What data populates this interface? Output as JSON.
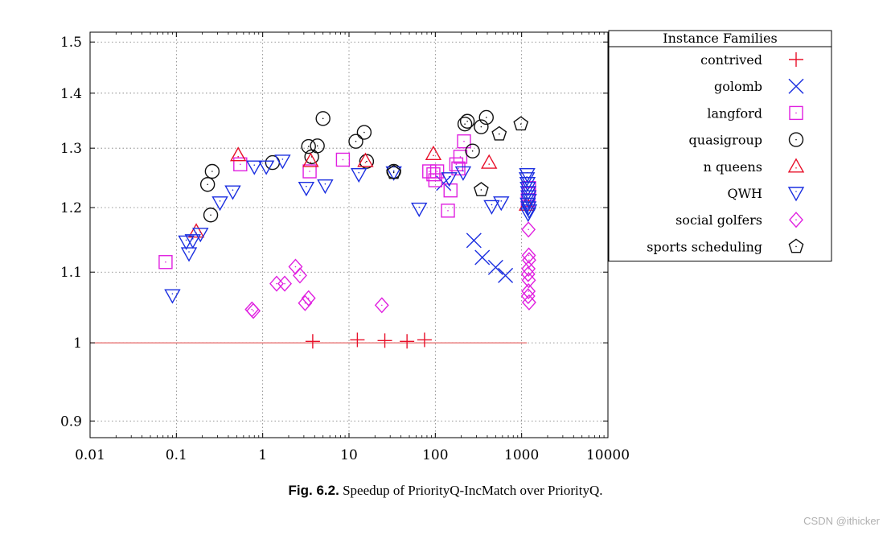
{
  "chart_data": {
    "type": "scatter",
    "title": "",
    "xlabel": "",
    "ylabel": "",
    "xscale": "log",
    "yscale": "log",
    "xlim": [
      0.01,
      10000
    ],
    "ylim": [
      0.88,
      1.52
    ],
    "x_ticks": [
      0.01,
      0.1,
      1,
      10,
      100,
      1000,
      10000
    ],
    "x_tick_labels": [
      "0.01",
      "0.1",
      "1",
      "10",
      "100",
      "1000",
      "10000"
    ],
    "y_ticks": [
      0.9,
      1,
      1.1,
      1.2,
      1.3,
      1.4,
      1.5
    ],
    "y_tick_labels": [
      "0.9",
      "1",
      "1.1",
      "1.2",
      "1.3",
      "1.4",
      "1.5"
    ],
    "grid": true,
    "reference_line": {
      "y": 1.0,
      "x_from": 0.01,
      "x_to": 1150,
      "color": "#e04040"
    },
    "legend_title": "Instance Families",
    "legend_position": "right",
    "series": [
      {
        "name": "contrived",
        "marker": "plus",
        "color": "#e8102a",
        "points": [
          [
            3.8,
            1.002
          ],
          [
            12.5,
            1.004
          ],
          [
            26,
            1.003
          ],
          [
            47,
            1.002
          ],
          [
            75,
            1.004
          ]
        ]
      },
      {
        "name": "golomb",
        "marker": "x",
        "color": "#1a2ee0",
        "points": [
          [
            125,
            1.24
          ],
          [
            280,
            1.148
          ],
          [
            350,
            1.122
          ],
          [
            500,
            1.107
          ],
          [
            650,
            1.095
          ]
        ]
      },
      {
        "name": "langford",
        "marker": "square",
        "color": "#e020e0",
        "points": [
          [
            0.075,
            1.115
          ],
          [
            0.55,
            1.272
          ],
          [
            3.5,
            1.26
          ],
          [
            8.5,
            1.28
          ],
          [
            85,
            1.26
          ],
          [
            95,
            1.255
          ],
          [
            100,
            1.245
          ],
          [
            105,
            1.26
          ],
          [
            140,
            1.195
          ],
          [
            150,
            1.228
          ],
          [
            175,
            1.272
          ],
          [
            185,
            1.265
          ],
          [
            195,
            1.285
          ],
          [
            215,
            1.312
          ],
          [
            1180,
            1.212
          ],
          [
            1220,
            1.232
          ],
          [
            1200,
            1.222
          ]
        ]
      },
      {
        "name": "quasigroup",
        "marker": "circle",
        "color": "#111111",
        "points": [
          [
            0.23,
            1.238
          ],
          [
            0.26,
            1.26
          ],
          [
            0.25,
            1.188
          ],
          [
            1.3,
            1.275
          ],
          [
            3.4,
            1.303
          ],
          [
            3.7,
            1.285
          ],
          [
            4.3,
            1.304
          ],
          [
            5.0,
            1.353
          ],
          [
            12,
            1.312
          ],
          [
            15,
            1.328
          ],
          [
            16,
            1.277
          ],
          [
            33,
            1.26
          ],
          [
            220,
            1.343
          ],
          [
            235,
            1.348
          ],
          [
            270,
            1.295
          ],
          [
            340,
            1.338
          ],
          [
            390,
            1.355
          ]
        ]
      },
      {
        "name": "n queens",
        "marker": "triangle-up",
        "color": "#e8102a",
        "points": [
          [
            0.17,
            1.162
          ],
          [
            0.52,
            1.288
          ],
          [
            3.6,
            1.278
          ],
          [
            15.5,
            1.278
          ],
          [
            95,
            1.29
          ],
          [
            420,
            1.275
          ],
          [
            1150,
            1.205
          ]
        ]
      },
      {
        "name": "QWH",
        "marker": "triangle-down",
        "color": "#1a2ee0",
        "points": [
          [
            0.09,
            1.066
          ],
          [
            0.13,
            1.146
          ],
          [
            0.14,
            1.128
          ],
          [
            0.155,
            1.148
          ],
          [
            0.19,
            1.158
          ],
          [
            0.32,
            1.208
          ],
          [
            0.45,
            1.226
          ],
          [
            0.8,
            1.268
          ],
          [
            1.1,
            1.268
          ],
          [
            1.7,
            1.278
          ],
          [
            3.2,
            1.232
          ],
          [
            5.3,
            1.236
          ],
          [
            13,
            1.255
          ],
          [
            33,
            1.258
          ],
          [
            65,
            1.198
          ],
          [
            145,
            1.248
          ],
          [
            210,
            1.258
          ],
          [
            450,
            1.202
          ],
          [
            580,
            1.208
          ],
          [
            1150,
            1.248
          ],
          [
            1160,
            1.255
          ],
          [
            1170,
            1.24
          ],
          [
            1180,
            1.232
          ],
          [
            1190,
            1.225
          ],
          [
            1200,
            1.218
          ],
          [
            1210,
            1.212
          ],
          [
            1180,
            1.206
          ],
          [
            1200,
            1.2
          ],
          [
            1220,
            1.195
          ],
          [
            1190,
            1.19
          ]
        ]
      },
      {
        "name": "social golfers",
        "marker": "diamond",
        "color": "#e020e0",
        "points": [
          [
            0.75,
            1.046
          ],
          [
            0.78,
            1.044
          ],
          [
            1.45,
            1.083
          ],
          [
            1.8,
            1.083
          ],
          [
            2.4,
            1.108
          ],
          [
            2.7,
            1.095
          ],
          [
            3.1,
            1.055
          ],
          [
            3.4,
            1.062
          ],
          [
            24,
            1.052
          ],
          [
            1200,
            1.165
          ],
          [
            1210,
            1.125
          ],
          [
            1220,
            1.118
          ],
          [
            1200,
            1.105
          ],
          [
            1190,
            1.097
          ],
          [
            1210,
            1.088
          ],
          [
            1200,
            1.072
          ],
          [
            1190,
            1.065
          ],
          [
            1220,
            1.056
          ]
        ]
      },
      {
        "name": "sports scheduling",
        "marker": "pentagon",
        "color": "#111111",
        "points": [
          [
            33,
            1.258
          ],
          [
            340,
            1.229
          ],
          [
            550,
            1.325
          ],
          [
            980,
            1.343
          ]
        ]
      }
    ]
  },
  "caption": {
    "label": "Fig. 6.2.",
    "text": "Speedup of PriorityQ-IncMatch over PriorityQ."
  },
  "watermark": "CSDN @ithicker"
}
